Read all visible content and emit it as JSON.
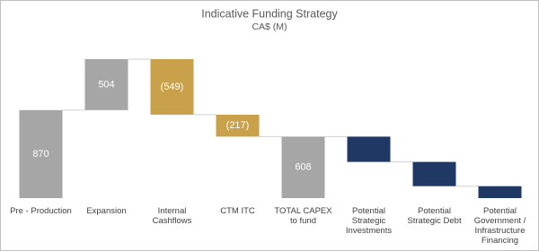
{
  "chart_data": {
    "type": "waterfall",
    "title": "Indicative Funding Strategy",
    "subtitle": "CA$ (M)",
    "categories": [
      "Pre - Production",
      "Expansion",
      "Internal Cashflows",
      "CTM ITC",
      "TOTAL CAPEX to fund",
      "Potential Strategic Investments",
      "Potential Strategic Debt",
      "Potential Government / Infrastructure Financing"
    ],
    "values": [
      870,
      504,
      -549,
      -217,
      608,
      -250,
      -240,
      -118
    ],
    "value_labels": [
      "870",
      "504",
      "(549)",
      "(217)",
      "608",
      null,
      null,
      null
    ],
    "measure": [
      "relative",
      "relative",
      "relative",
      "relative",
      "total",
      "relative",
      "relative",
      "relative"
    ],
    "colors": [
      "#a6a6a6",
      "#a6a6a6",
      "#c9a14a",
      "#c9a14a",
      "#a6a6a6",
      "#1f3864",
      "#1f3864",
      "#1f3864"
    ]
  }
}
